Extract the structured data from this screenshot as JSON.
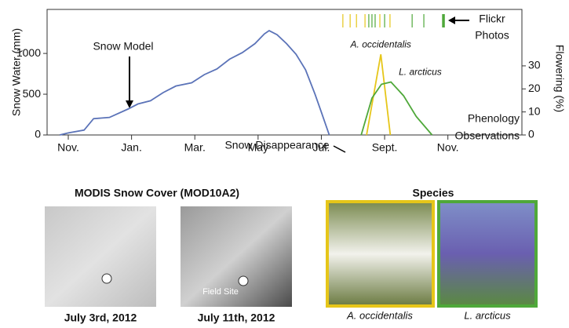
{
  "chart_data": {
    "type": "line",
    "xlim": [
      0.33,
      15.34
    ],
    "xticks": [
      {
        "value": 1,
        "label": "Nov."
      },
      {
        "value": 3,
        "label": "Jan."
      },
      {
        "value": 5,
        "label": "Mar."
      },
      {
        "value": 7,
        "label": "May"
      },
      {
        "value": 9,
        "label": "Jul."
      },
      {
        "value": 11,
        "label": "Sept."
      },
      {
        "value": 13,
        "label": "Nov."
      }
    ],
    "ylabel": "Snow Water (mm)",
    "ylim": [
      0,
      1540
    ],
    "yticks": [
      0,
      500,
      1000
    ],
    "y2label": "Flowering (%)",
    "y2lim": [
      0,
      54.5
    ],
    "y2ticks": [
      0,
      10,
      20,
      30
    ],
    "series": [
      {
        "name": "Snow Model",
        "color": "#5b73b8",
        "x": [
          0.73,
          1.0,
          1.5,
          1.8,
          2.3,
          2.9,
          3.2,
          3.6,
          4.0,
          4.4,
          4.9,
          5.3,
          5.7,
          6.1,
          6.5,
          6.9,
          7.2,
          7.35,
          7.6,
          7.9,
          8.2,
          8.5,
          8.8,
          9.0,
          9.25
        ],
        "values": [
          0,
          25,
          60,
          200,
          215,
          320,
          380,
          420,
          520,
          600,
          640,
          740,
          810,
          930,
          1010,
          1120,
          1240,
          1280,
          1230,
          1120,
          990,
          800,
          500,
          280,
          0
        ]
      },
      {
        "name": "A. occidentalis",
        "color": "#e6c619",
        "axis": "y2",
        "x": [
          10.43,
          10.88,
          11.18
        ],
        "values": [
          0,
          35,
          0
        ]
      },
      {
        "name": "L. arcticus",
        "color": "#4fa83a",
        "axis": "y2",
        "x": [
          10.26,
          10.6,
          10.9,
          11.2,
          11.6,
          12.0,
          12.5
        ],
        "values": [
          0,
          16,
          22,
          23,
          17,
          8,
          0
        ]
      }
    ],
    "flickr": {
      "label": [
        "Flickr",
        "Photos"
      ],
      "a_occidentalis_x": [
        9.68,
        9.91,
        10.11,
        10.38,
        10.85,
        11.17
      ],
      "l_arcticus_x": [
        10.5,
        10.6,
        10.7,
        11.0,
        11.87,
        12.24,
        12.86
      ]
    },
    "annotations": {
      "snow_model": "Snow Model",
      "snow_disappearance": "Snow Disappearance",
      "phenology": [
        "Phenology",
        "Observations"
      ]
    }
  },
  "panels": {
    "modis_title": "MODIS Snow Cover (MOD10A2)",
    "modis_dates": [
      "July 3rd, 2012",
      "July 11th, 2012"
    ],
    "field_site": "Field Site",
    "species_title": "Species",
    "species": [
      "A. occidentalis",
      "L. arcticus"
    ]
  }
}
